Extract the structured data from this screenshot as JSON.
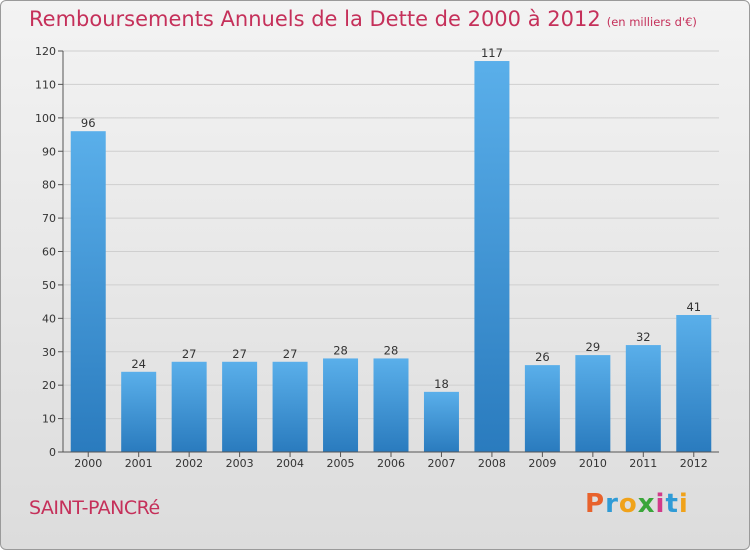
{
  "header": {
    "title": "Remboursements Annuels de la Dette de 2000 à 2012",
    "unit": "(en milliers d'€)"
  },
  "commune": "SAINT-PANCRé",
  "logo": {
    "letters": [
      "P",
      "r",
      "o",
      "x",
      "i",
      "t",
      "i"
    ],
    "colors": [
      "#e8622c",
      "#2f9bd6",
      "#f0a21a",
      "#3aa63a",
      "#d13a8a",
      "#2f9bd6",
      "#f0a21a"
    ]
  },
  "colors": {
    "bar_top": "#5aafea",
    "bar_bottom": "#2a7bbe",
    "title": "#c5305a"
  },
  "chart_data": {
    "type": "bar",
    "categories": [
      "2000",
      "2001",
      "2002",
      "2003",
      "2004",
      "2005",
      "2006",
      "2007",
      "2008",
      "2009",
      "2010",
      "2011",
      "2012"
    ],
    "values": [
      96,
      24,
      27,
      27,
      27,
      28,
      28,
      18,
      117,
      26,
      29,
      32,
      41
    ],
    "value_labels": [
      "96",
      "24",
      "27",
      "27",
      "27",
      "28",
      "28",
      "18",
      "117",
      "26",
      "29",
      "32",
      "41"
    ],
    "ylim": [
      0,
      120
    ],
    "yticks": [
      0,
      10,
      20,
      30,
      40,
      50,
      60,
      70,
      80,
      90,
      100,
      110,
      120
    ],
    "ytick_labels": [
      "0",
      "10",
      "20",
      "30",
      "40",
      "50",
      "60",
      "70",
      "80",
      "90",
      "100",
      "110",
      "120"
    ],
    "grid": true
  }
}
